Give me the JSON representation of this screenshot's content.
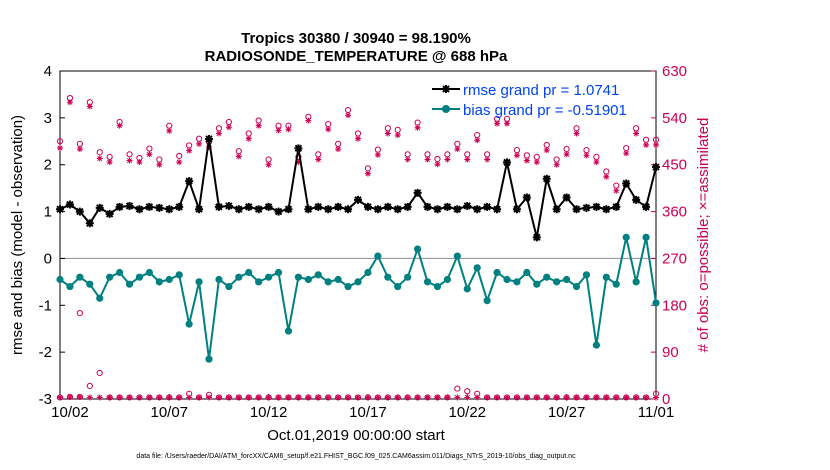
{
  "chart_data": {
    "type": "line",
    "title": "Tropics 30380 / 30940 = 98.190%",
    "subtitle": "RADIOSONDE_TEMPERATURE @ 688 hPa",
    "xlabel": "Oct.01,2019 00:00:00 start",
    "ylabel": "rmse and bias (model - observation)",
    "y2label": "# of obs: o=possible; ×=assimilated",
    "footnote": "data file: /Users/raeder/DAI/ATM_forcXX/CAM6_setup/f.e21.FHIST_BGC.f09_025.CAM6assim.011/Diags_NTrS_2019-10/obs_diag_output.nc",
    "xlim": [
      1.5,
      31.5
    ],
    "ylim": [
      -3,
      4
    ],
    "y2lim": [
      0,
      630
    ],
    "xticks": [
      2,
      7,
      12,
      17,
      22,
      27,
      32
    ],
    "xticklabels": [
      "10/02",
      "10/07",
      "10/12",
      "10/17",
      "10/22",
      "10/27",
      "11/01"
    ],
    "yticks": [
      -3,
      -2,
      -1,
      0,
      1,
      2,
      3,
      4
    ],
    "y2ticks": [
      0,
      90,
      180,
      270,
      360,
      450,
      540,
      630
    ],
    "colors": {
      "rmse": "#000000",
      "bias": "#008080",
      "obs": "#cc0055",
      "zero": "#999999",
      "legend_text": "#0044ee"
    },
    "legend": [
      {
        "label": "rmse grand pr = 1.0741",
        "color": "#000000"
      },
      {
        "label": "bias grand pr = -0.51901",
        "color": "#008080"
      }
    ],
    "series": [
      {
        "name": "rmse",
        "x": [
          1.5,
          2,
          2.5,
          3,
          3.5,
          4,
          4.5,
          5,
          5.5,
          6,
          6.5,
          7,
          7.5,
          8,
          8.5,
          9,
          9.5,
          10,
          10.5,
          11,
          11.5,
          12,
          12.5,
          13,
          13.5,
          14,
          14.5,
          15,
          15.5,
          16,
          16.5,
          17,
          17.5,
          18,
          18.5,
          19,
          19.5,
          20,
          20.5,
          21,
          21.5,
          22,
          22.5,
          23,
          23.5,
          24,
          24.5,
          25,
          25.5,
          26,
          26.5,
          27,
          27.5,
          28,
          28.5,
          29,
          29.5,
          30,
          30.5,
          31,
          31.5
        ],
        "values": [
          1.05,
          1.15,
          1.0,
          0.75,
          1.08,
          0.95,
          1.1,
          1.12,
          1.05,
          1.1,
          1.08,
          1.05,
          1.1,
          1.65,
          1.05,
          2.55,
          1.1,
          1.12,
          1.05,
          1.1,
          1.05,
          1.1,
          1.0,
          1.05,
          2.35,
          1.05,
          1.1,
          1.05,
          1.1,
          1.05,
          1.25,
          1.1,
          1.05,
          1.1,
          1.05,
          1.1,
          1.4,
          1.1,
          1.05,
          1.1,
          1.05,
          1.12,
          1.05,
          1.1,
          1.05,
          2.05,
          1.05,
          1.3,
          0.45,
          1.7,
          1.05,
          1.3,
          1.05,
          1.08,
          1.1,
          1.05,
          1.1,
          1.6,
          1.25,
          1.1,
          1.95
        ]
      },
      {
        "name": "bias",
        "x": [
          1.5,
          2,
          2.5,
          3,
          3.5,
          4,
          4.5,
          5,
          5.5,
          6,
          6.5,
          7,
          7.5,
          8,
          8.5,
          9,
          9.5,
          10,
          10.5,
          11,
          11.5,
          12,
          12.5,
          13,
          13.5,
          14,
          14.5,
          15,
          15.5,
          16,
          16.5,
          17,
          17.5,
          18,
          18.5,
          19,
          19.5,
          20,
          20.5,
          21,
          21.5,
          22,
          22.5,
          23,
          23.5,
          24,
          24.5,
          25,
          25.5,
          26,
          26.5,
          27,
          27.5,
          28,
          28.5,
          29,
          29.5,
          30,
          30.5,
          31,
          31.5
        ],
        "values": [
          -0.45,
          -0.6,
          -0.4,
          -0.55,
          -0.85,
          -0.4,
          -0.3,
          -0.55,
          -0.4,
          -0.3,
          -0.5,
          -0.45,
          -0.35,
          -1.4,
          -0.5,
          -2.15,
          -0.45,
          -0.6,
          -0.4,
          -0.3,
          -0.5,
          -0.4,
          -0.3,
          -1.55,
          -0.4,
          -0.45,
          -0.35,
          -0.5,
          -0.45,
          -0.6,
          -0.5,
          -0.3,
          0.05,
          -0.4,
          -0.6,
          -0.4,
          0.2,
          -0.5,
          -0.6,
          -0.45,
          0.05,
          -0.65,
          -0.2,
          -0.9,
          -0.3,
          -0.45,
          -0.5,
          -0.3,
          -0.55,
          -0.4,
          -0.5,
          -0.45,
          -0.6,
          -0.35,
          -1.85,
          -0.4,
          -0.55,
          0.45,
          -0.5,
          0.45,
          -0.95
        ]
      },
      {
        "name": "obs_possible",
        "x": [
          1.5,
          2,
          2.5,
          3,
          3.5,
          4,
          4.5,
          5,
          5.5,
          6,
          6.5,
          7,
          7.5,
          8,
          8.5,
          9,
          9.5,
          10,
          10.5,
          11,
          11.5,
          12,
          12.5,
          13,
          13.5,
          14,
          14.5,
          15,
          15.5,
          16,
          16.5,
          17,
          17.5,
          18,
          18.5,
          19,
          19.5,
          20,
          20.5,
          21,
          21.5,
          22,
          22.5,
          23,
          23.5,
          24,
          24.5,
          25,
          25.5,
          26,
          26.5,
          27,
          27.5,
          28,
          28.5,
          29,
          29.5,
          30,
          30.5,
          31,
          31.5
        ],
        "values": [
          495,
          578,
          490,
          570,
          474,
          465,
          532,
          470,
          463,
          481,
          460,
          525,
          467,
          487,
          500,
          494,
          520,
          532,
          476,
          510,
          535,
          460,
          525,
          525,
          465,
          542,
          470,
          528,
          490,
          555,
          510,
          443,
          479,
          520,
          517,
          470,
          531,
          470,
          461,
          470,
          490,
          470,
          507,
          470,
          538,
          538,
          478,
          468,
          465,
          488,
          460,
          480,
          520,
          478,
          465,
          437,
          410,
          482,
          520,
          498,
          498
        ]
      },
      {
        "name": "obs_assimilated",
        "x": [
          1.5,
          2,
          2.5,
          3,
          3.5,
          4,
          4.5,
          5,
          5.5,
          6,
          6.5,
          7,
          7.5,
          8,
          8.5,
          9,
          9.5,
          10,
          10.5,
          11,
          11.5,
          12,
          12.5,
          13,
          13.5,
          14,
          14.5,
          15,
          15.5,
          16,
          16.5,
          17,
          17.5,
          18,
          18.5,
          19,
          19.5,
          20,
          20.5,
          21,
          21.5,
          22,
          22.5,
          23,
          23.5,
          24,
          24.5,
          25,
          25.5,
          26,
          26.5,
          27,
          27.5,
          28,
          28.5,
          29,
          29.5,
          30,
          30.5,
          31,
          31.5
        ],
        "values": [
          482,
          570,
          480,
          562,
          462,
          455,
          525,
          458,
          455,
          470,
          450,
          515,
          455,
          477,
          490,
          484,
          510,
          522,
          466,
          500,
          525,
          450,
          516,
          518,
          455,
          535,
          460,
          518,
          480,
          545,
          500,
          433,
          469,
          510,
          507,
          460,
          521,
          460,
          451,
          460,
          480,
          460,
          497,
          460,
          529,
          529,
          468,
          458,
          455,
          478,
          450,
          470,
          510,
          468,
          455,
          427,
          400,
          472,
          510,
          488,
          488
        ]
      }
    ],
    "count_low": {
      "possible": [
        3,
        4,
        4,
        25,
        50,
        3,
        3,
        3,
        3,
        3,
        3,
        3,
        3,
        10,
        3,
        8,
        3,
        3,
        3,
        3,
        3,
        3,
        3,
        3,
        3,
        3,
        3,
        3,
        3,
        3,
        3,
        3,
        3,
        3,
        3,
        3,
        3,
        3,
        3,
        3,
        20,
        15,
        10,
        3,
        3,
        3,
        3,
        3,
        3,
        3,
        3,
        3,
        3,
        3,
        3,
        3,
        3,
        3,
        3,
        3,
        10
      ],
      "assimilated": [
        3,
        4,
        4,
        3,
        3,
        3,
        3,
        3,
        3,
        3,
        3,
        3,
        3,
        3,
        3,
        3,
        3,
        3,
        3,
        3,
        3,
        3,
        3,
        3,
        3,
        3,
        3,
        3,
        3,
        3,
        3,
        3,
        3,
        3,
        3,
        3,
        3,
        3,
        3,
        3,
        3,
        3,
        3,
        3,
        3,
        3,
        3,
        3,
        3,
        3,
        3,
        3,
        3,
        3,
        3,
        3,
        3,
        3,
        3,
        3,
        3
      ],
      "outlier_possible": {
        "x": 2.5,
        "value": 165
      }
    }
  }
}
